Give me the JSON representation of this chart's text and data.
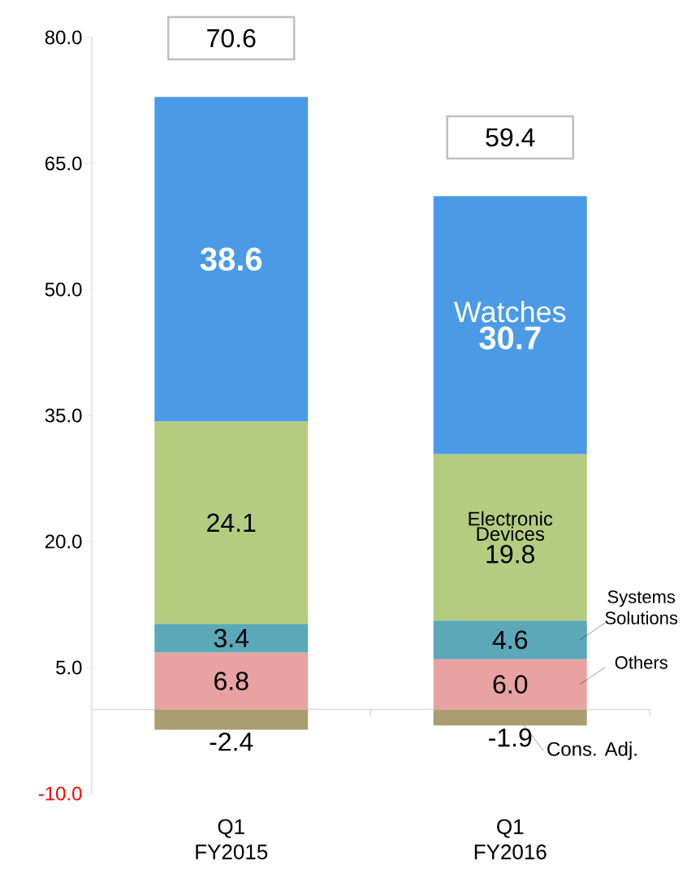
{
  "chart_data": {
    "type": "bar",
    "stacked": true,
    "categories": [
      "Q1\nFY2015",
      "Q1\nFY2016"
    ],
    "series": [
      {
        "name": "Others",
        "color": "#e8a2a2",
        "values": [
          6.8,
          6.0
        ],
        "value_labels": [
          "6.8",
          "6.0"
        ]
      },
      {
        "name": "Systems Solutions",
        "color": "#5aa8b8",
        "values": [
          3.4,
          4.6
        ],
        "value_labels": [
          "3.4",
          "4.6"
        ]
      },
      {
        "name": "Electronic Devices",
        "color": "#b4cc80",
        "values": [
          24.1,
          19.8
        ],
        "value_labels": [
          "24.1",
          "19.8"
        ]
      },
      {
        "name": "Watches",
        "color": "#4a9ae6",
        "values": [
          38.6,
          30.7
        ],
        "value_labels": [
          "38.6",
          "30.7"
        ]
      },
      {
        "name": "Cons. Adj.",
        "color": "#aa9e70",
        "values": [
          -2.4,
          -1.9
        ],
        "value_labels": [
          "-2.4",
          "-1.9"
        ]
      }
    ],
    "ylim": [
      -10,
      80
    ],
    "yticks": [
      {
        "value": -10,
        "label": "-10.0"
      },
      {
        "value": 5,
        "label": "5.0"
      },
      {
        "value": 20,
        "label": "20.0"
      },
      {
        "value": 35,
        "label": "35.0"
      },
      {
        "value": 50,
        "label": "50.0"
      },
      {
        "value": 65,
        "label": "65.0"
      },
      {
        "value": 80,
        "label": "80.0"
      }
    ],
    "totals": [
      "70.6",
      "59.4"
    ],
    "legend": false
  }
}
